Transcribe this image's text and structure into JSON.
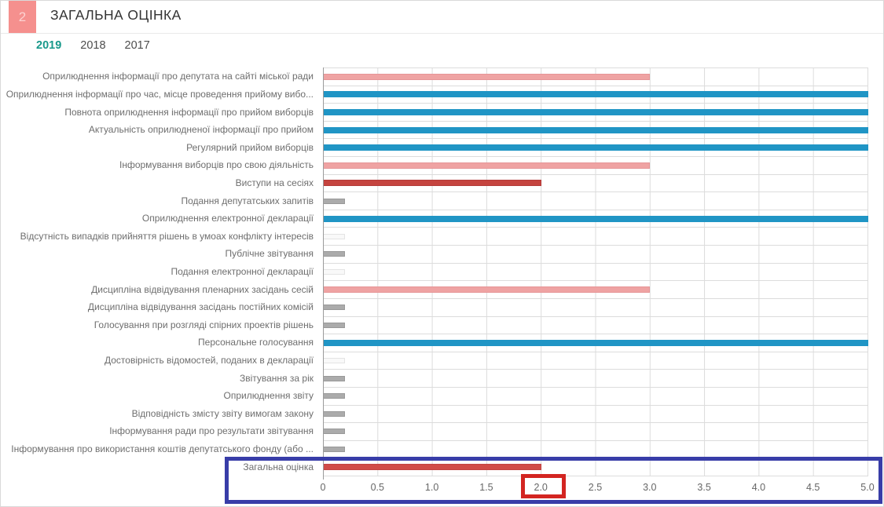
{
  "header": {
    "badge": "2",
    "title": "ЗАГАЛЬНА ОЦІНКА"
  },
  "tabs": [
    {
      "label": "2019",
      "active": true
    },
    {
      "label": "2018",
      "active": false
    },
    {
      "label": "2017",
      "active": false
    }
  ],
  "theme": {
    "badge_bg": "#f5908e",
    "badge_text": "#fcd2d1",
    "tab_active": "#18998b",
    "tab_inactive": "#4d4d4d",
    "highlight_outer_box": "#383da8",
    "highlight_inner_box": "#d32521"
  },
  "chart_data": {
    "type": "bar",
    "orientation": "horizontal",
    "title": "ЗАГАЛЬНА ОЦІНКА",
    "xlabel": "",
    "ylabel": "",
    "xlim": [
      0,
      5
    ],
    "grid": true,
    "xticks": [
      "0",
      "0.5",
      "1.0",
      "1.5",
      "2.0",
      "2.5",
      "3.0",
      "3.5",
      "4.0",
      "4.5",
      "5.0"
    ],
    "categories": [
      "Оприлюднення інформації про депутата на сайті міської ради",
      "Оприлюднення інформації про час, місце проведення прийому вибо...",
      "Повнота оприлюднення інформації про прийом виборців",
      "Актуальність оприлюдненої інформації про прийом",
      "Регулярний прийом виборців",
      "Інформування виборців про свою діяльність",
      "Виступи на сесіях",
      "Подання депутатських запитів",
      "Оприлюднення електронної декларації",
      "Відсутність випадків прийняття рішень в умоах конфлікту інтересів",
      "Публічне звітування",
      "Подання електронної декларації",
      "Дисципліна відвідування пленарних засідань сесій",
      "Дисципліна відвідування засідань постійних комісій",
      "Голосування при розгляді спірних проектів рішень",
      "Персональне голосування",
      "Достовірність відомостей, поданих в декларації",
      "Звітування за рік",
      "Оприлюднення звіту",
      "Відповідність змісту звіту вимогам закону",
      "Інформування ради про результати звітування",
      "Інформування про використання коштів депутатського фонду (або ...",
      "Загальна оцінка"
    ],
    "values": [
      3,
      5,
      5,
      5,
      5,
      3,
      2,
      0.2,
      5,
      0.2,
      0.2,
      0.2,
      3,
      0.2,
      0.2,
      5,
      0.2,
      0.2,
      0.2,
      0.2,
      0.2,
      0.2,
      2
    ],
    "styles": [
      "pink",
      "blue",
      "blue",
      "blue",
      "blue",
      "pink",
      "darkred",
      "gray",
      "blue",
      "light",
      "gray",
      "light",
      "pink",
      "gray",
      "gray",
      "blue",
      "light",
      "gray",
      "gray",
      "gray",
      "gray",
      "gray",
      "red"
    ],
    "colors": {
      "blue": {
        "fill": "#2095c5",
        "edge": "#2095c5"
      },
      "pink": {
        "fill": "#efa3a3",
        "edge": "#e69597"
      },
      "darkred": {
        "fill": "#c5443f",
        "edge": "#b43c3a"
      },
      "red": {
        "fill": "#d14c48",
        "edge": "#c24442"
      },
      "gray": {
        "fill": "#ababab",
        "edge": "#999999"
      },
      "light": {
        "fill": "#f9f9f9",
        "edge": "#e4e4e4"
      }
    }
  }
}
